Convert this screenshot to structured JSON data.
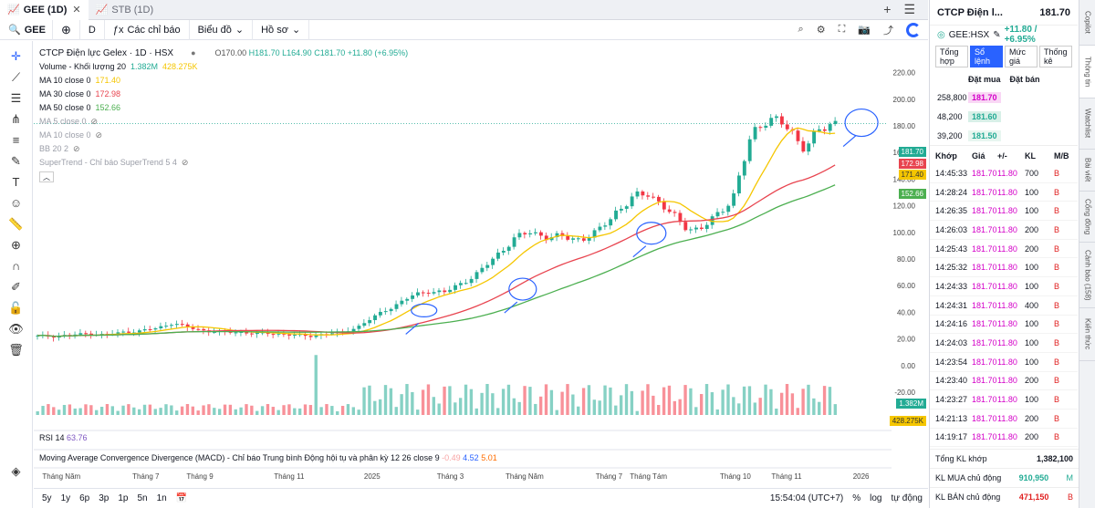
{
  "tabs": [
    {
      "label": "GEE (1D)",
      "close": "✕"
    },
    {
      "label": "STB (1D)"
    }
  ],
  "toolbar": {
    "symbol": "GEE",
    "add": "⊕",
    "interval": "D",
    "indicators": "Các chỉ báo",
    "chart_type": "Biểu đồ",
    "profile": "Hồ sơ"
  },
  "legend": {
    "title": "CTCP Điện lực Gelex · 1D · HSX",
    "open": "O170.00",
    "high": "H181.70",
    "low": "L164.90",
    "close": "C181.70",
    "change": "+11.80 (+6.95%)",
    "volume": {
      "label": "Volume - Khối lượng 20",
      "v1": "1.382M",
      "v2": "428.275K"
    },
    "ma10": {
      "label": "MA 10 close 0",
      "value": "171.40"
    },
    "ma30": {
      "label": "MA 30 close 0",
      "value": "172.98"
    },
    "ma50": {
      "label": "MA 50 close 0",
      "value": "152.66"
    },
    "ma5": {
      "label": "MA 5 close 0"
    },
    "ma10b": {
      "label": "MA 10 close 0"
    },
    "bb": {
      "label": "BB 20 2"
    },
    "supertrend": {
      "label": "SuperTrend - Chỉ báo SuperTrend 5 4"
    },
    "rsi": {
      "label": "RSI 14",
      "value": "63.76"
    },
    "macd": {
      "label": "Moving Average Convergence Divergence (MACD) - Chỉ báo Trung bình Động hội tụ và phân kỳ 12 26 close 9",
      "v1": "-0.49",
      "v2": "4.52",
      "v3": "5.01"
    }
  },
  "price_scale": {
    "ticks": [
      "220.00",
      "200.00",
      "180.00",
      "160.00",
      "140.00",
      "120.00",
      "100.00",
      "80.00",
      "60.00",
      "40.00",
      "20.00",
      "0.00",
      "-20.00"
    ],
    "tags": {
      "close": "181.70",
      "ma30": "172.98",
      "ma10": "171.40",
      "ma50": "152.66",
      "vol1": "1.382M",
      "vol2": "428.275K"
    }
  },
  "time_axis": [
    "Tháng Năm",
    "Tháng 7",
    "Tháng 9",
    "Tháng 11",
    "2025",
    "Tháng 3",
    "Tháng Năm",
    "Tháng 7",
    "Tháng Tám",
    "Tháng 10",
    "Tháng 11",
    "2026"
  ],
  "bottom": {
    "ranges": [
      "5y",
      "1y",
      "6p",
      "3p",
      "1p",
      "5n",
      "1n"
    ],
    "time": "15:54:04 (UTC+7)",
    "pct": "%",
    "log": "log",
    "auto": "tự động"
  },
  "colors": {
    "up": "#22ab94",
    "down": "#f23645",
    "ma10": "#f5c600",
    "ma30": "#e8444f",
    "ma50": "#4caf50",
    "accent": "#2962ff"
  },
  "chart_data": {
    "type": "line",
    "series_close_approx": [
      22,
      22,
      23,
      24,
      23,
      25,
      26,
      28,
      32,
      28,
      26,
      25,
      25,
      24,
      24,
      23,
      22,
      24,
      25,
      30,
      38,
      45,
      52,
      56,
      55,
      62,
      70,
      82,
      95,
      100,
      97,
      96,
      95,
      100,
      115,
      125,
      130,
      118,
      105,
      102,
      112,
      128,
      170,
      188,
      180,
      165,
      175,
      181.7
    ],
    "ylim": [
      -20,
      230
    ]
  },
  "panel": {
    "name": "CTCP Điện l...",
    "price": "181.70",
    "ticker": "GEE:HSX",
    "change": "+11.80 / +6.95%",
    "tabs": [
      "Tổng hợp",
      "Sổ lệnh",
      "Mức giá",
      "Thống kê"
    ],
    "ob_headers": [
      "Đặt mua",
      "Đặt bán"
    ],
    "orderbook": [
      {
        "vol": "258,800",
        "price": "181.70"
      },
      {
        "vol": "48,200",
        "price": "181.60"
      },
      {
        "vol": "39,200",
        "price": "181.50"
      }
    ],
    "trade_headers": [
      "Khớp",
      "Giá",
      "+/-",
      "KL",
      "M/B"
    ],
    "trades": [
      [
        "14:45:33",
        "181.70",
        "11.80",
        "700",
        "B"
      ],
      [
        "14:28:24",
        "181.70",
        "11.80",
        "100",
        "B"
      ],
      [
        "14:26:35",
        "181.70",
        "11.80",
        "100",
        "B"
      ],
      [
        "14:26:03",
        "181.70",
        "11.80",
        "200",
        "B"
      ],
      [
        "14:25:43",
        "181.70",
        "11.80",
        "200",
        "B"
      ],
      [
        "14:25:32",
        "181.70",
        "11.80",
        "100",
        "B"
      ],
      [
        "14:24:33",
        "181.70",
        "11.80",
        "100",
        "B"
      ],
      [
        "14:24:31",
        "181.70",
        "11.80",
        "400",
        "B"
      ],
      [
        "14:24:16",
        "181.70",
        "11.80",
        "100",
        "B"
      ],
      [
        "14:24:03",
        "181.70",
        "11.80",
        "100",
        "B"
      ],
      [
        "14:23:54",
        "181.70",
        "11.80",
        "100",
        "B"
      ],
      [
        "14:23:40",
        "181.70",
        "11.80",
        "200",
        "B"
      ],
      [
        "14:23:27",
        "181.70",
        "11.80",
        "100",
        "B"
      ],
      [
        "14:21:13",
        "181.70",
        "11.80",
        "200",
        "B"
      ],
      [
        "14:19:17",
        "181.70",
        "11.80",
        "200",
        "B"
      ]
    ],
    "total_label": "Tổng KL khớp",
    "total": "1,382,100",
    "buy_label": "KL MUA chủ động",
    "buy": "910,950",
    "buy_tag": "M",
    "sell_label": "KL BÁN chủ động",
    "sell": "471,150",
    "sell_tag": "B"
  },
  "vtabs": [
    "Copilot",
    "Thông tin",
    "Watchlist",
    "Bài viết",
    "Cổng đồng",
    "Cảnh báo (158)",
    "Kiến thức"
  ]
}
